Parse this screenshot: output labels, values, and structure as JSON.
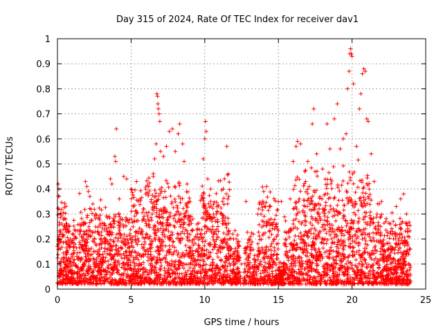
{
  "chart_data": {
    "type": "scatter",
    "title": "Day 315 of 2024, Rate Of TEC Index for receiver dav1",
    "xlabel": "GPS time / hours",
    "ylabel": "ROTI / TECUs",
    "xlim": [
      0,
      25
    ],
    "ylim": [
      0,
      1
    ],
    "xticks": [
      "0",
      "5",
      "10",
      "15",
      "20",
      "25"
    ],
    "yticks": [
      "0",
      "0.1",
      "0.2",
      "0.3",
      "0.4",
      "0.5",
      "0.6",
      "0.7",
      "0.8",
      "0.9",
      "1"
    ],
    "grid": true,
    "marker": "+",
    "color": "#ff0000",
    "points": [
      [
        0.05,
        0.42
      ],
      [
        0.1,
        0.4
      ],
      [
        0.1,
        0.37
      ],
      [
        0.3,
        0.26
      ],
      [
        0.5,
        0.25
      ],
      [
        0.1,
        0.21
      ],
      [
        0.2,
        0.16
      ],
      [
        0.4,
        0.12
      ],
      [
        0.6,
        0.09
      ],
      [
        0.8,
        0.07
      ],
      [
        0.9,
        0.04
      ],
      [
        1.2,
        0.18
      ],
      [
        1.5,
        0.22
      ],
      [
        1.8,
        0.26
      ],
      [
        1.9,
        0.43
      ],
      [
        2.0,
        0.41
      ],
      [
        2.1,
        0.39
      ],
      [
        2.2,
        0.37
      ],
      [
        2.4,
        0.34
      ],
      [
        2.6,
        0.3
      ],
      [
        2.8,
        0.22
      ],
      [
        3.0,
        0.18
      ],
      [
        3.2,
        0.15
      ],
      [
        3.5,
        0.29
      ],
      [
        3.6,
        0.44
      ],
      [
        3.7,
        0.42
      ],
      [
        3.9,
        0.53
      ],
      [
        3.95,
        0.51
      ],
      [
        4.0,
        0.64
      ],
      [
        4.2,
        0.36
      ],
      [
        4.5,
        0.45
      ],
      [
        4.7,
        0.44
      ],
      [
        5.0,
        0.4
      ],
      [
        5.3,
        0.31
      ],
      [
        5.6,
        0.36
      ],
      [
        6.0,
        0.38
      ],
      [
        6.2,
        0.41
      ],
      [
        6.5,
        0.45
      ],
      [
        6.6,
        0.52
      ],
      [
        6.7,
        0.58
      ],
      [
        6.75,
        0.78
      ],
      [
        6.8,
        0.77
      ],
      [
        6.82,
        0.74
      ],
      [
        6.85,
        0.72
      ],
      [
        6.9,
        0.7
      ],
      [
        6.95,
        0.67
      ],
      [
        7.0,
        0.55
      ],
      [
        7.2,
        0.53
      ],
      [
        7.4,
        0.57
      ],
      [
        7.6,
        0.63
      ],
      [
        7.8,
        0.64
      ],
      [
        8.0,
        0.55
      ],
      [
        8.2,
        0.62
      ],
      [
        8.3,
        0.66
      ],
      [
        8.5,
        0.58
      ],
      [
        8.6,
        0.51
      ],
      [
        8.8,
        0.42
      ],
      [
        9.0,
        0.35
      ],
      [
        9.2,
        0.28
      ],
      [
        9.5,
        0.22
      ],
      [
        9.8,
        0.36
      ],
      [
        9.9,
        0.52
      ],
      [
        10.0,
        0.6
      ],
      [
        10.05,
        0.67
      ],
      [
        10.1,
        0.63
      ],
      [
        10.2,
        0.44
      ],
      [
        10.4,
        0.4
      ],
      [
        10.6,
        0.3
      ],
      [
        10.9,
        0.25
      ],
      [
        11.2,
        0.35
      ],
      [
        11.5,
        0.57
      ],
      [
        11.6,
        0.46
      ],
      [
        11.9,
        0.22
      ],
      [
        12.2,
        0.13
      ],
      [
        12.5,
        0.1
      ],
      [
        12.8,
        0.35
      ],
      [
        13.0,
        0.2
      ],
      [
        13.3,
        0.22
      ],
      [
        13.7,
        0.34
      ],
      [
        14.0,
        0.39
      ],
      [
        14.2,
        0.41
      ],
      [
        14.5,
        0.28
      ],
      [
        14.8,
        0.25
      ],
      [
        15.2,
        0.35
      ],
      [
        15.5,
        0.2
      ],
      [
        15.8,
        0.36
      ],
      [
        16.0,
        0.51
      ],
      [
        16.2,
        0.57
      ],
      [
        16.3,
        0.59
      ],
      [
        16.5,
        0.58
      ],
      [
        16.8,
        0.47
      ],
      [
        17.0,
        0.51
      ],
      [
        17.3,
        0.66
      ],
      [
        17.4,
        0.72
      ],
      [
        17.6,
        0.54
      ],
      [
        18.0,
        0.48
      ],
      [
        18.3,
        0.66
      ],
      [
        18.5,
        0.56
      ],
      [
        18.8,
        0.68
      ],
      [
        19.0,
        0.74
      ],
      [
        19.2,
        0.56
      ],
      [
        19.4,
        0.6
      ],
      [
        19.6,
        0.62
      ],
      [
        19.7,
        0.8
      ],
      [
        19.8,
        0.87
      ],
      [
        19.85,
        0.94
      ],
      [
        19.9,
        0.96
      ],
      [
        19.95,
        0.94
      ],
      [
        20.0,
        0.93
      ],
      [
        20.1,
        0.82
      ],
      [
        20.3,
        0.57
      ],
      [
        20.5,
        0.72
      ],
      [
        20.6,
        0.78
      ],
      [
        20.7,
        0.86
      ],
      [
        20.8,
        0.88
      ],
      [
        20.9,
        0.87
      ],
      [
        21.0,
        0.68
      ],
      [
        21.1,
        0.67
      ],
      [
        21.3,
        0.54
      ],
      [
        21.5,
        0.43
      ],
      [
        21.7,
        0.3
      ],
      [
        22.0,
        0.35
      ],
      [
        22.3,
        0.27
      ],
      [
        22.6,
        0.26
      ],
      [
        23.0,
        0.33
      ],
      [
        23.3,
        0.36
      ],
      [
        23.5,
        0.38
      ],
      [
        23.7,
        0.3
      ],
      [
        23.9,
        0.16
      ],
      [
        23.95,
        0.06
      ]
    ]
  }
}
